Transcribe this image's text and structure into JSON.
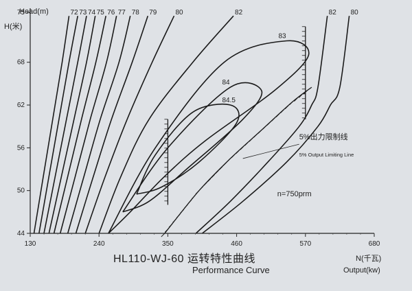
{
  "chart_data": {
    "type": "line",
    "subtype": "efficiency hill chart with contour lines",
    "title": "HL110-WJ-60 运转特性曲线",
    "subtitle": "Performance Curve",
    "xlabel": [
      "N(千瓦)",
      "Output(kw)"
    ],
    "ylabel": [
      "Head(m)",
      "H(米)"
    ],
    "xlim": [
      130,
      680
    ],
    "ylim": [
      44,
      75
    ],
    "x_ticks": [
      130,
      240,
      350,
      460,
      570,
      680
    ],
    "y_ticks": [
      44,
      50,
      56,
      62,
      68,
      75
    ],
    "grid": false,
    "contour_labels": [
      "72",
      "73",
      "74",
      "75",
      "76",
      "77",
      "78",
      "79",
      "80",
      "82",
      "83",
      "84",
      "84.5",
      "82",
      "80"
    ],
    "annotations": {
      "speed": "n=750prm",
      "limit_cn": "5%出力限制线",
      "limit_en": "5% Output Limiting Line"
    },
    "series": [
      {
        "label": "72",
        "x": [
          136,
          151,
          166,
          181,
          192
        ],
        "y": [
          44,
          52,
          60,
          68,
          74.5
        ]
      },
      {
        "label": "73",
        "x": [
          144,
          160,
          176,
          192,
          206
        ],
        "y": [
          44,
          52,
          60,
          68,
          74.5
        ]
      },
      {
        "label": "74",
        "x": [
          152,
          170,
          188,
          206,
          220
        ],
        "y": [
          44,
          52,
          60,
          68,
          74.5
        ]
      },
      {
        "label": "75",
        "x": [
          160,
          180,
          200,
          220,
          234
        ],
        "y": [
          44,
          52,
          60,
          68,
          74.5
        ]
      },
      {
        "label": "76",
        "x": [
          168,
          190,
          212,
          235,
          251
        ],
        "y": [
          44,
          52,
          60,
          68,
          74.5
        ]
      },
      {
        "label": "77",
        "x": [
          178,
          202,
          226,
          252,
          268
        ],
        "y": [
          44,
          52,
          60,
          68,
          74.5
        ]
      },
      {
        "label": "78",
        "x": [
          190,
          216,
          242,
          272,
          290
        ],
        "y": [
          44,
          52,
          60,
          68,
          74.5
        ]
      },
      {
        "label": "79",
        "x": [
          203,
          231,
          260,
          293,
          318
        ],
        "y": [
          44,
          52,
          60,
          68,
          74.5
        ]
      },
      {
        "label": "80",
        "x": [
          218,
          250,
          285,
          325,
          360
        ],
        "y": [
          44,
          52,
          60,
          68,
          74.5
        ]
      },
      {
        "label": "82",
        "x": [
          240,
          275,
          320,
          390,
          455
        ],
        "y": [
          44,
          52,
          60,
          68,
          74.5
        ]
      },
      {
        "label": "83",
        "x": [
          255,
          290,
          345,
          410,
          520,
          575,
          540,
          440,
          330,
          255
        ],
        "y": [
          44,
          47,
          52,
          57,
          64,
          69,
          71,
          68,
          56,
          44
        ]
      },
      {
        "label": "84",
        "x": [
          278,
          320,
          380,
          470,
          500,
          450,
          350,
          278
        ],
        "y": [
          47,
          48.5,
          53,
          60,
          64,
          64.5,
          56,
          47
        ]
      },
      {
        "label": "84.5",
        "x": [
          300,
          340,
          400,
          460,
          450,
          390,
          330,
          300
        ],
        "y": [
          49.5,
          50.5,
          54,
          59.5,
          62,
          61,
          55,
          49.5
        ]
      },
      {
        "label": "82",
        "x": [
          395,
          450,
          510,
          560,
          580,
          590,
          605
        ],
        "y": [
          44,
          48.5,
          54,
          59,
          62,
          64.5,
          74.5
        ]
      },
      {
        "label": "80",
        "x": [
          405,
          470,
          540,
          590,
          610,
          625,
          640
        ],
        "y": [
          44,
          48.5,
          54,
          59,
          62,
          64.5,
          74.5
        ]
      }
    ],
    "limit_line": {
      "x": [
        345,
        400,
        450,
        500,
        550,
        580
      ],
      "y": [
        44,
        50,
        54.5,
        58.5,
        62.5,
        64.5
      ]
    },
    "vertical_segments": [
      {
        "x": 350,
        "y": [
          48,
          60
        ]
      },
      {
        "x": 570,
        "y": [
          60,
          73
        ]
      }
    ]
  }
}
